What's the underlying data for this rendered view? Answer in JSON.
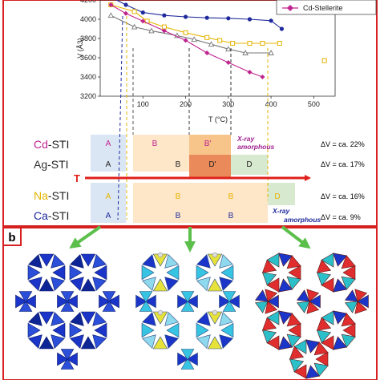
{
  "colors": {
    "cd": "#c0238f",
    "ag": "#333333",
    "na": "#e5b400",
    "ca": "#1f2a9c",
    "arrow": "#e0201b",
    "frame_red": "#d62020",
    "green_arrow": "#5cbf4c",
    "phaseA": "#dbe6f4",
    "phaseB": "#fde7c8",
    "phaseBprime": "#f7c58a",
    "phaseDprime": "#ea8a5a",
    "phaseD": "#d7e9cf"
  },
  "chart_data": {
    "type": "line",
    "xlabel": "T (°C)",
    "ylabel": "V (Å3)",
    "xlim": [
      0,
      550
    ],
    "ylim": [
      3200,
      4200
    ],
    "xticks": [
      "100",
      "200",
      "300",
      "400",
      "500"
    ],
    "yticks": [
      "3200",
      "3400",
      "3600",
      "3800",
      "4000",
      "4200"
    ],
    "legend_entry": "Cd-Stellerite",
    "series": [
      {
        "id": "ca",
        "color": "#1f2a9c",
        "marker": "circle",
        "x": [
          25,
          60,
          100,
          150,
          200,
          250,
          300,
          350,
          400,
          425
        ],
        "y": [
          4230,
          4150,
          4070,
          4040,
          4025,
          4015,
          4010,
          4000,
          3985,
          3900
        ]
      },
      {
        "id": "na",
        "color": "#e5b400",
        "marker": "square",
        "x": [
          25,
          80,
          110,
          150,
          200,
          250,
          280,
          310,
          350,
          380,
          420
        ],
        "y": [
          4150,
          4080,
          3980,
          3920,
          3860,
          3810,
          3780,
          3750,
          3750,
          3750,
          3750
        ]
      },
      {
        "id": "ag",
        "color": "#777777",
        "marker": "triangle",
        "x": [
          25,
          80,
          120,
          180,
          220,
          260,
          300,
          340,
          400
        ],
        "y": [
          4040,
          3920,
          3880,
          3830,
          3790,
          3740,
          3690,
          3650,
          3650
        ]
      },
      {
        "id": "cd",
        "color": "#c0238f",
        "marker": "diamond",
        "x": [
          25,
          60,
          100,
          150,
          200,
          250,
          300,
          350,
          380
        ],
        "y": [
          4150,
          4060,
          3980,
          3880,
          3780,
          3650,
          3550,
          3450,
          3400
        ]
      },
      {
        "id": "na-iso",
        "color": "#e5b400",
        "marker": "square",
        "x": [
          525
        ],
        "y": [
          3570
        ]
      }
    ]
  },
  "phase_diagram": {
    "arrow_label": "T",
    "rows": [
      {
        "id": "cd",
        "label_el": "Cd",
        "label_rest": "-STI",
        "phases": [
          "A",
          "B",
          "B'"
        ],
        "amorphous": "X-ray amorphous",
        "dv": "ΔV = ca. 22%"
      },
      {
        "id": "ag",
        "label_el": "Ag",
        "label_rest": "-STI",
        "phases": [
          "A",
          "B",
          "D'",
          "D"
        ],
        "dv": "ΔV = ca. 17%"
      },
      {
        "id": "na",
        "label_el": "Na",
        "label_rest": "-STI",
        "phases": [
          "A",
          "B",
          "B",
          "D"
        ],
        "dv": "ΔV = ca. 16%"
      },
      {
        "id": "ca",
        "label_el": "Ca",
        "label_rest": "-STI",
        "phases": [
          "A",
          "B",
          "B"
        ],
        "amorphous": "X-ray amorphous",
        "dv": "ΔV = ca. 9%"
      }
    ]
  },
  "panel_b": {
    "label": "b"
  }
}
